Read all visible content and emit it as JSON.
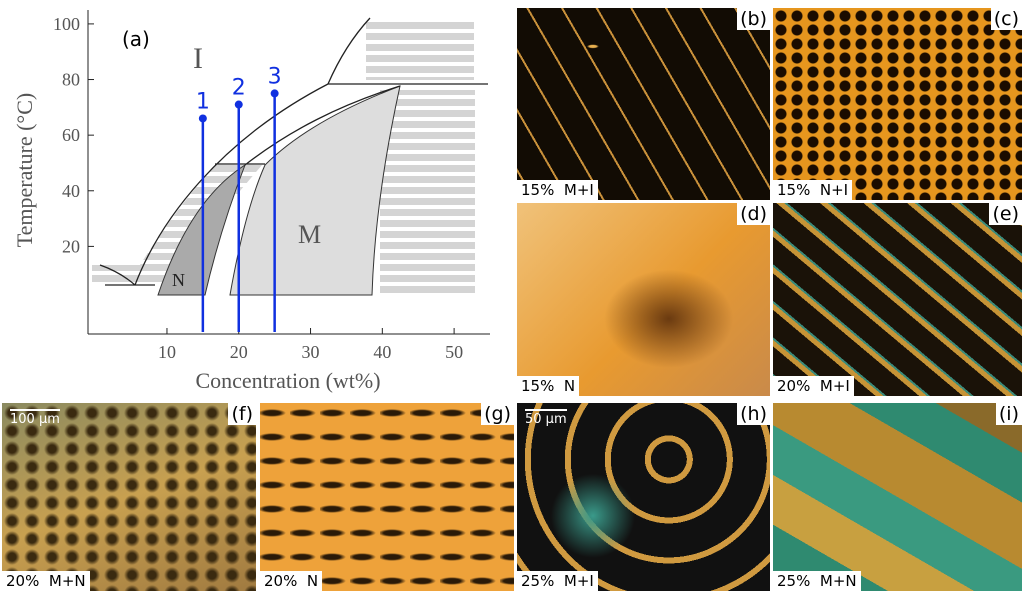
{
  "chart_data": {
    "type": "phase-diagram",
    "panel_label": "(a)",
    "xlabel": "Concentration (wt%)",
    "ylabel": "Temperature (°C)",
    "xlim": [
      -1,
      55
    ],
    "ylim": [
      -11.5,
      105
    ],
    "xticks": [
      10,
      20,
      30,
      40,
      50
    ],
    "yticks": [
      20,
      40,
      60,
      80,
      100
    ],
    "region_labels": [
      "I",
      "M",
      "N"
    ],
    "paths": {
      "labels": [
        "1",
        "2",
        "3"
      ],
      "x": [
        15,
        20,
        25
      ],
      "values": [
        66,
        71,
        75
      ],
      "color": "#1030e0"
    }
  },
  "panels": [
    {
      "label": "(b)",
      "caption": "15%  M+I"
    },
    {
      "label": "(c)",
      "caption": "15%  N+I"
    },
    {
      "label": "(d)",
      "caption": "15%  N"
    },
    {
      "label": "(e)",
      "caption": "20%  M+I"
    },
    {
      "label": "(f)",
      "caption": "20%  M+N",
      "scale": "100 µm"
    },
    {
      "label": "(g)",
      "caption": "20%  N"
    },
    {
      "label": "(h)",
      "caption": "25%  M+I",
      "scale": "50 µm"
    },
    {
      "label": "(i)",
      "caption": "25%  M+N"
    }
  ]
}
